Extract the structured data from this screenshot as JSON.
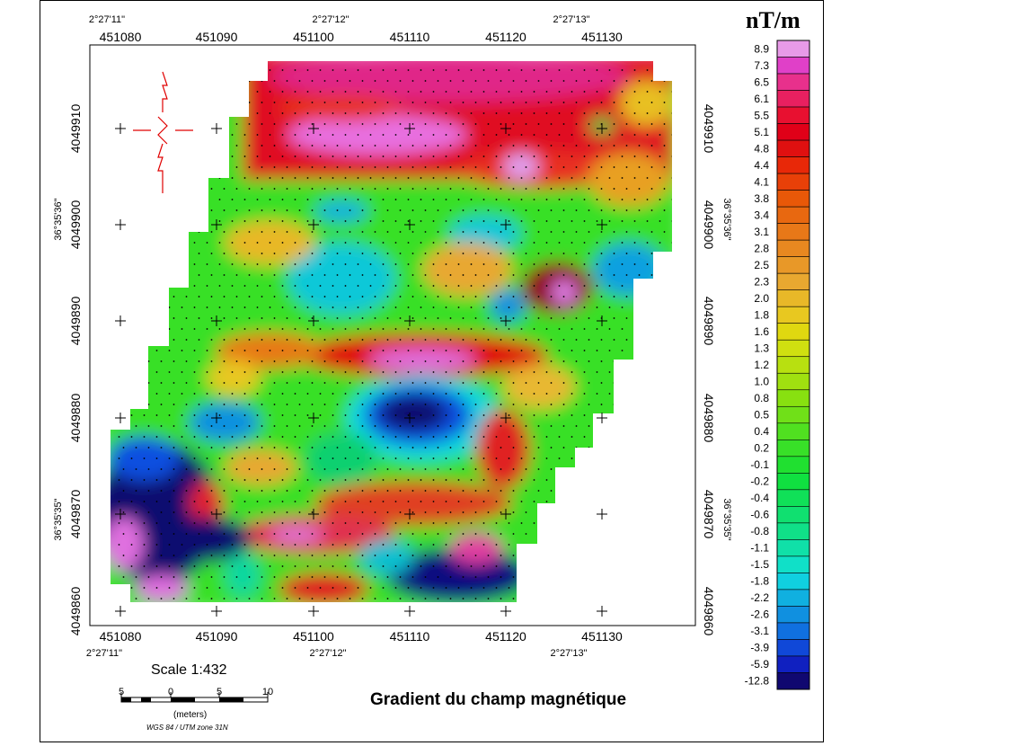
{
  "map": {
    "unit_title": "nT/m",
    "title": "Gradient du champ magnétique",
    "scale_label": "Scale 1:432",
    "scale_ticks": [
      "5",
      "0",
      "5",
      "10"
    ],
    "scale_unit": "(meters)",
    "projection": "WGS 84 / UTM zone 31N",
    "x_ticks": [
      "451080",
      "451090",
      "451100",
      "451110",
      "451120",
      "451130"
    ],
    "y_ticks": [
      "4049910",
      "4049900",
      "4049890",
      "4049880",
      "4049870",
      "4049860"
    ],
    "lon_top": [
      "2°27'11\"",
      "2°27'12\"",
      "2°27'13\""
    ],
    "lon_bottom": [
      "2°27'11\"",
      "2°27'12\"",
      "2°27'13\""
    ],
    "lat_left": [
      "36°35'36\"",
      "36°35'35\""
    ],
    "lat_right": [
      "36°35'36\"",
      "36°35'35\""
    ]
  },
  "legend": {
    "values": [
      "8.9",
      "7.3",
      "6.5",
      "6.1",
      "5.5",
      "5.1",
      "4.8",
      "4.4",
      "4.1",
      "3.8",
      "3.4",
      "3.1",
      "2.8",
      "2.5",
      "2.3",
      "2.0",
      "1.8",
      "1.6",
      "1.3",
      "1.2",
      "1.0",
      "0.8",
      "0.5",
      "0.4",
      "0.2",
      "-0.1",
      "-0.2",
      "-0.4",
      "-0.6",
      "-0.8",
      "-1.1",
      "-1.5",
      "-1.8",
      "-2.2",
      "-2.6",
      "-3.1",
      "-3.9",
      "-5.9",
      "-12.8"
    ],
    "colors": [
      "#e89ae8",
      "#e040c8",
      "#e8308c",
      "#e82060",
      "#e81030",
      "#e00018",
      "#e01010",
      "#e82808",
      "#e84008",
      "#e85808",
      "#e86810",
      "#e87818",
      "#e88820",
      "#e89828",
      "#e8a830",
      "#e8b828",
      "#e8c820",
      "#e0d810",
      "#d0e010",
      "#b8e010",
      "#a0e010",
      "#88e010",
      "#70e018",
      "#50e020",
      "#38e028",
      "#20e030",
      "#10e040",
      "#10e058",
      "#10e070",
      "#10e088",
      "#10e0a8",
      "#10e0c8",
      "#10d0e0",
      "#10b0e0",
      "#1090e0",
      "#1070e0",
      "#1048d8",
      "#1020c0",
      "#100870"
    ]
  }
}
